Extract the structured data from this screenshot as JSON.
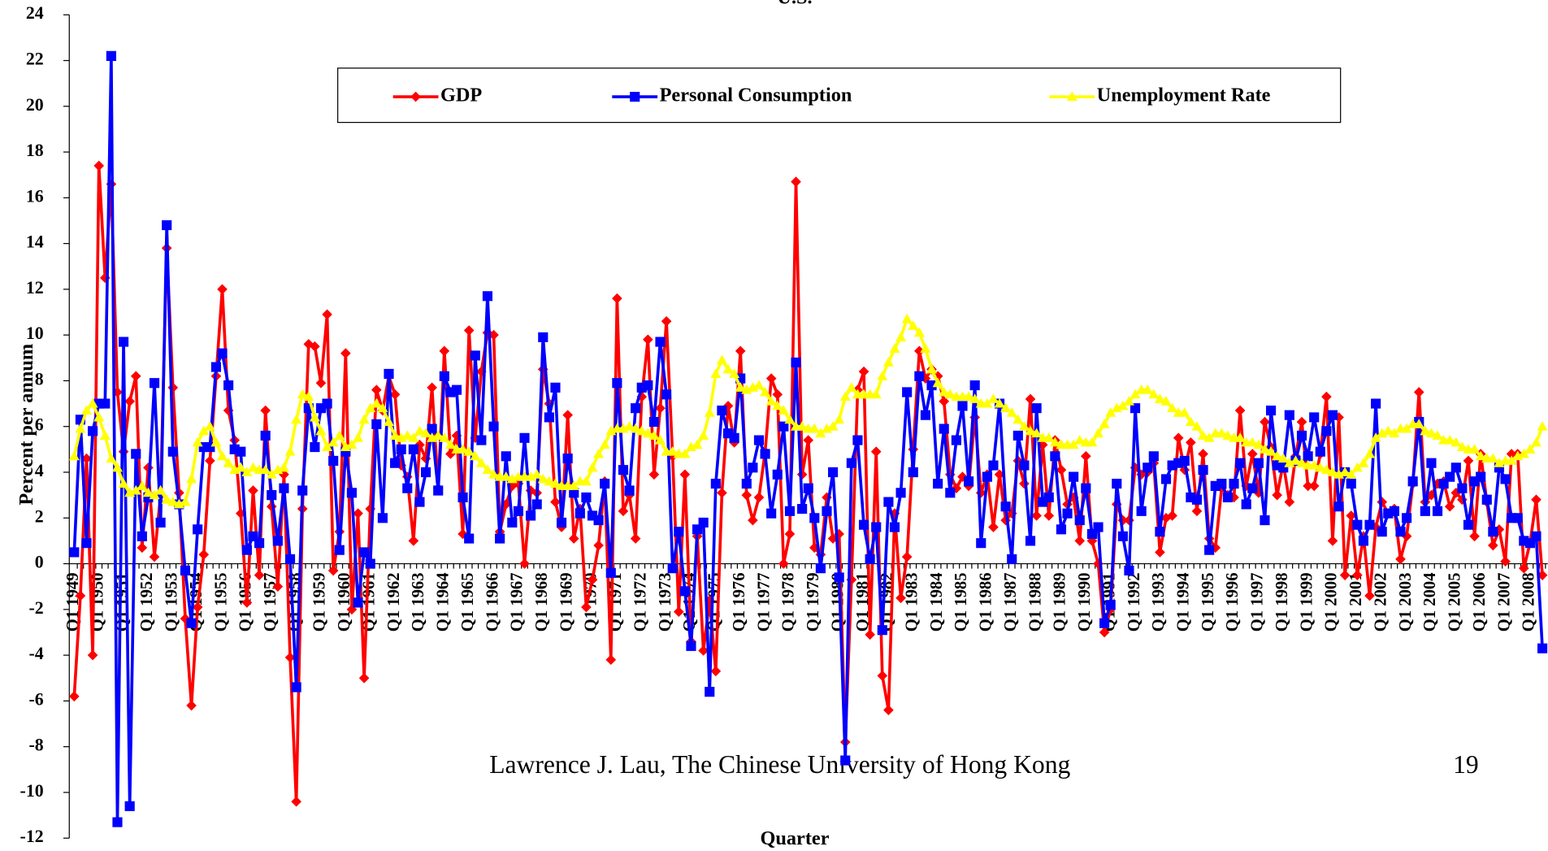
{
  "chart_data": {
    "type": "line",
    "title": "U.S.",
    "y_label": "Percent per annum",
    "x_label": "Quarter",
    "legend": "top",
    "ylim": [
      -12,
      24
    ],
    "yticks": [
      -12,
      -10,
      -8,
      -6,
      -4,
      -2,
      0,
      2,
      4,
      6,
      8,
      10,
      12,
      14,
      16,
      18,
      20,
      22,
      24
    ],
    "categories": [
      "Q1 1949",
      null,
      null,
      null,
      "Q1 1950",
      null,
      null,
      null,
      "Q1 1951",
      null,
      null,
      null,
      "Q1 1952",
      null,
      null,
      null,
      "Q1 1953",
      null,
      null,
      null,
      "Q1 1954",
      null,
      null,
      null,
      "Q1 1955",
      null,
      null,
      null,
      "Q1 1956",
      null,
      null,
      null,
      "Q1 1957",
      null,
      null,
      null,
      "Q1 1958",
      null,
      null,
      null,
      "Q1 1959",
      null,
      null,
      null,
      "Q1 1960",
      null,
      null,
      null,
      "Q1 1961",
      null,
      null,
      null,
      "Q1 1962",
      null,
      null,
      null,
      "Q1 1963",
      null,
      null,
      null,
      "Q1 1964",
      null,
      null,
      null,
      "Q1 1965",
      null,
      null,
      null,
      "Q1 1966",
      null,
      null,
      null,
      "Q1 1967",
      null,
      null,
      null,
      "Q1 1968",
      null,
      null,
      null,
      "Q1 1969",
      null,
      null,
      null,
      "Q1 1970",
      null,
      null,
      null,
      "Q1 1971",
      null,
      null,
      null,
      "Q1 1972",
      null,
      null,
      null,
      "Q1 1973",
      null,
      null,
      null,
      "Q1 1974",
      null,
      null,
      null,
      "Q1 1975",
      null,
      null,
      null,
      "Q1 1976",
      null,
      null,
      null,
      "Q1 1977",
      null,
      null,
      null,
      "Q1 1978",
      null,
      null,
      null,
      "Q1 1979",
      null,
      null,
      null,
      "Q1 1980",
      null,
      null,
      null,
      "Q1 1981",
      null,
      null,
      null,
      "Q1 1982",
      null,
      null,
      null,
      "Q1 1983",
      null,
      null,
      null,
      "Q1 1984",
      null,
      null,
      null,
      "Q1 1985",
      null,
      null,
      null,
      "Q1 1986",
      null,
      null,
      null,
      "Q1 1987",
      null,
      null,
      null,
      "Q1 1988",
      null,
      null,
      null,
      "Q1 1989",
      null,
      null,
      null,
      "Q1 1990",
      null,
      null,
      null,
      "Q1 1991",
      null,
      null,
      null,
      "Q1 1992",
      null,
      null,
      null,
      "Q1 1993",
      null,
      null,
      null,
      "Q1 1994",
      null,
      null,
      null,
      "Q1 1995",
      null,
      null,
      null,
      "Q1 1996",
      null,
      null,
      null,
      "Q1 1997",
      null,
      null,
      null,
      "Q1 1998",
      null,
      null,
      null,
      "Q1 1999",
      null,
      null,
      null,
      "Q1 2000",
      null,
      null,
      null,
      "Q1 2001",
      null,
      null,
      null,
      "Q1 2002",
      null,
      null,
      null,
      "Q1 2003",
      null,
      null,
      null,
      "Q1 2004",
      null,
      null,
      null,
      "Q1 2005",
      null,
      null,
      null,
      "Q1 2006",
      null,
      null,
      null,
      "Q1 2007",
      null,
      null,
      null,
      "Q1 2008",
      null,
      null
    ],
    "series": [
      {
        "name": "GDP",
        "color": "#ff0000",
        "marker": "diamond",
        "values": [
          -5.8,
          -1.4,
          4.6,
          -4.0,
          17.4,
          12.5,
          16.6,
          7.5,
          4.9,
          7.1,
          8.2,
          0.7,
          4.2,
          0.3,
          3.0,
          13.8,
          7.7,
          3.1,
          -2.4,
          -6.2,
          -1.9,
          0.4,
          4.5,
          8.2,
          12.0,
          6.7,
          5.4,
          2.2,
          -1.7,
          3.2,
          -0.5,
          6.7,
          2.5,
          -1.0,
          3.9,
          -4.1,
          -10.4,
          2.4,
          9.6,
          9.5,
          7.9,
          10.9,
          -0.3,
          1.4,
          9.2,
          -2.0,
          2.2,
          -5.0,
          2.4,
          7.6,
          6.7,
          8.2,
          7.4,
          4.3,
          3.8,
          1.0,
          5.2,
          4.6,
          7.7,
          3.3,
          9.3,
          4.8,
          5.6,
          1.3,
          10.2,
          5.5,
          8.4,
          10.1,
          10.0,
          1.4,
          2.6,
          3.4,
          3.5,
          0.0,
          3.2,
          3.1,
          8.5,
          7.0,
          2.7,
          1.6,
          6.5,
          1.1,
          2.4,
          -1.9,
          -0.7,
          0.8,
          3.6,
          -4.2,
          11.6,
          2.3,
          3.0,
          1.1,
          7.3,
          9.8,
          3.9,
          6.8,
          10.6,
          4.7,
          -2.1,
          3.9,
          -3.4,
          1.2,
          -3.8,
          -1.6,
          -4.7,
          3.1,
          6.9,
          5.3,
          9.3,
          3.0,
          1.9,
          2.9,
          4.9,
          8.1,
          7.4,
          0.0,
          1.3,
          16.7,
          3.9,
          5.4,
          0.7,
          0.4,
          2.9,
          1.1,
          1.3,
          -7.8,
          -0.7,
          7.6,
          8.4,
          -3.1,
          4.9,
          -4.9,
          -6.4,
          2.2,
          -1.5,
          0.3,
          5.0,
          9.3,
          8.1,
          8.5,
          8.2,
          7.1,
          3.9,
          3.3,
          3.8,
          3.4,
          6.4,
          3.1,
          3.9,
          1.6,
          3.9,
          1.9,
          2.2,
          4.5,
          3.5,
          7.2,
          2.1,
          5.2,
          2.1,
          5.4,
          4.1,
          2.6,
          2.9,
          1.0,
          4.7,
          1.0,
          0.0,
          -3.0,
          -2.0,
          2.6,
          1.9,
          1.9,
          4.2,
          3.9,
          4.0,
          4.4,
          0.5,
          2.0,
          2.1,
          5.5,
          4.1,
          5.3,
          2.3,
          4.8,
          1.1,
          0.7,
          3.3,
          3.0,
          2.9,
          6.7,
          3.4,
          4.8,
          3.1,
          6.2,
          5.1,
          3.0,
          4.4,
          2.7,
          4.7,
          6.2,
          3.4,
          3.4,
          4.8,
          7.3,
          1.0,
          6.4,
          -0.5,
          2.1,
          -0.5,
          1.2,
          -1.4,
          1.6,
          2.7,
          2.2,
          2.4,
          0.2,
          1.2,
          3.5,
          7.5,
          2.7,
          3.0,
          3.5,
          3.6,
          2.5,
          3.1,
          2.8,
          4.5,
          1.2,
          4.8,
          2.7,
          0.8,
          1.5,
          0.1,
          4.8,
          4.8,
          -0.2,
          0.9,
          2.8,
          -0.5
        ]
      },
      {
        "name": "Personal Consumption",
        "color": "#0000ff",
        "marker": "square",
        "values": [
          0.5,
          6.3,
          0.9,
          5.8,
          7.0,
          7.0,
          22.2,
          -11.3,
          9.7,
          -10.6,
          4.8,
          1.2,
          2.9,
          7.9,
          1.8,
          14.8,
          4.9,
          2.6,
          -0.3,
          -2.6,
          1.5,
          5.1,
          5.1,
          8.6,
          9.2,
          7.8,
          5.0,
          4.9,
          0.6,
          1.2,
          0.9,
          5.6,
          3.0,
          1.0,
          3.3,
          0.2,
          -5.4,
          3.2,
          6.8,
          5.1,
          6.8,
          7.0,
          4.5,
          0.6,
          4.9,
          3.1,
          -1.7,
          0.5,
          0.0,
          6.1,
          2.0,
          8.3,
          4.4,
          5.0,
          3.3,
          5.0,
          2.7,
          4.0,
          5.9,
          3.2,
          8.2,
          7.5,
          7.6,
          2.9,
          1.1,
          9.1,
          5.4,
          11.7,
          6.0,
          1.1,
          4.7,
          1.8,
          2.3,
          5.5,
          2.1,
          2.6,
          9.9,
          6.4,
          7.7,
          1.8,
          4.6,
          3.1,
          2.2,
          2.9,
          2.1,
          1.9,
          3.5,
          -0.4,
          7.9,
          4.1,
          3.2,
          6.8,
          7.7,
          7.8,
          6.2,
          9.7,
          7.4,
          -0.2,
          1.4,
          -1.2,
          -3.6,
          1.5,
          1.8,
          -5.6,
          3.5,
          6.7,
          5.7,
          5.5,
          8.1,
          3.5,
          4.2,
          5.4,
          4.8,
          2.2,
          3.9,
          6.0,
          2.3,
          8.8,
          2.4,
          3.3,
          2.0,
          -0.2,
          2.3,
          4.0,
          -0.6,
          -8.6,
          4.4,
          5.4,
          1.7,
          0.2,
          1.6,
          -2.9,
          2.7,
          1.6,
          3.1,
          7.5,
          4.0,
          8.2,
          6.5,
          7.8,
          3.5,
          5.9,
          3.1,
          5.4,
          6.9,
          3.6,
          7.8,
          0.9,
          3.8,
          4.3,
          7.0,
          2.5,
          0.2,
          5.6,
          4.3,
          1.0,
          6.8,
          2.7,
          2.9,
          4.7,
          1.5,
          2.2,
          3.8,
          1.9,
          3.3,
          1.3,
          1.6,
          -2.6,
          -1.8,
          3.5,
          1.2,
          -0.3,
          6.8,
          2.3,
          4.2,
          4.7,
          1.4,
          3.7,
          4.3,
          4.4,
          4.5,
          2.9,
          2.8,
          4.1,
          0.6,
          3.4,
          3.5,
          2.9,
          3.5,
          4.4,
          2.6,
          3.3,
          4.4,
          1.9,
          6.7,
          4.3,
          4.2,
          6.5,
          4.5,
          5.6,
          4.7,
          6.4,
          4.9,
          5.8,
          6.5,
          2.5,
          4.0,
          3.5,
          1.7,
          1.0,
          1.7,
          7.0,
          1.4,
          2.2,
          2.3,
          1.4,
          2.0,
          3.6,
          6.2,
          2.3,
          4.4,
          2.3,
          3.5,
          3.8,
          4.2,
          3.3,
          1.7,
          3.6,
          3.8,
          2.8,
          1.4,
          4.2,
          3.7,
          2.0,
          2.0,
          1.0,
          0.9,
          1.2,
          -3.7
        ]
      },
      {
        "name": "Unemployment Rate",
        "color": "#ffff00",
        "marker": "triangle",
        "values": [
          4.7,
          5.9,
          6.7,
          7.0,
          6.4,
          5.6,
          4.6,
          4.2,
          3.5,
          3.1,
          3.2,
          3.4,
          3.1,
          3.0,
          3.2,
          2.8,
          2.7,
          2.6,
          2.7,
          3.7,
          5.3,
          5.8,
          6.0,
          5.3,
          4.7,
          4.4,
          4.1,
          4.2,
          4.0,
          4.2,
          4.1,
          4.1,
          3.9,
          4.1,
          4.2,
          4.9,
          6.3,
          7.4,
          7.3,
          6.4,
          5.8,
          5.1,
          5.3,
          5.6,
          5.1,
          5.2,
          5.5,
          6.3,
          6.8,
          7.0,
          6.8,
          6.2,
          5.6,
          5.5,
          5.6,
          5.5,
          5.8,
          5.7,
          5.5,
          5.6,
          5.5,
          5.2,
          5.0,
          5.0,
          4.9,
          4.7,
          4.4,
          4.1,
          3.9,
          3.8,
          3.8,
          3.7,
          3.8,
          3.8,
          3.8,
          3.9,
          3.7,
          3.6,
          3.5,
          3.4,
          3.4,
          3.4,
          3.6,
          3.6,
          4.2,
          4.8,
          5.2,
          5.8,
          5.9,
          5.9,
          6.0,
          5.9,
          5.8,
          5.7,
          5.6,
          5.4,
          4.9,
          4.9,
          4.8,
          4.8,
          5.1,
          5.2,
          5.6,
          6.6,
          8.3,
          8.9,
          8.5,
          8.3,
          7.7,
          7.6,
          7.7,
          7.8,
          7.5,
          7.1,
          6.9,
          6.7,
          6.3,
          6.0,
          6.0,
          5.9,
          5.9,
          5.7,
          5.9,
          6.0,
          6.3,
          7.3,
          7.7,
          7.4,
          7.4,
          7.4,
          7.4,
          8.2,
          8.8,
          9.4,
          9.9,
          10.7,
          10.4,
          10.1,
          9.4,
          8.5,
          7.9,
          7.5,
          7.4,
          7.3,
          7.3,
          7.3,
          7.2,
          7.0,
          7.0,
          7.2,
          7.0,
          6.8,
          6.6,
          6.3,
          6.0,
          5.8,
          5.7,
          5.5,
          5.5,
          5.3,
          5.2,
          5.2,
          5.2,
          5.4,
          5.3,
          5.3,
          5.7,
          6.1,
          6.6,
          6.8,
          6.9,
          7.1,
          7.4,
          7.6,
          7.6,
          7.4,
          7.2,
          7.1,
          6.8,
          6.6,
          6.6,
          6.2,
          6.0,
          5.6,
          5.5,
          5.7,
          5.7,
          5.6,
          5.5,
          5.5,
          5.3,
          5.3,
          5.2,
          5.0,
          4.9,
          4.7,
          4.6,
          4.4,
          4.5,
          4.4,
          4.3,
          4.3,
          4.2,
          4.1,
          4.0,
          3.9,
          4.0,
          3.9,
          4.2,
          4.4,
          4.8,
          5.5,
          5.7,
          5.8,
          5.7,
          5.9,
          5.9,
          6.1,
          6.1,
          5.8,
          5.7,
          5.6,
          5.4,
          5.4,
          5.3,
          5.1,
          5.0,
          5.0,
          4.7,
          4.6,
          4.6,
          4.4,
          4.5,
          4.5,
          4.7,
          4.8,
          5.0,
          5.3,
          6.0
        ]
      }
    ]
  },
  "footer": {
    "text": "Lawrence J. Lau, The Chinese University of Hong Kong",
    "page": "19"
  }
}
